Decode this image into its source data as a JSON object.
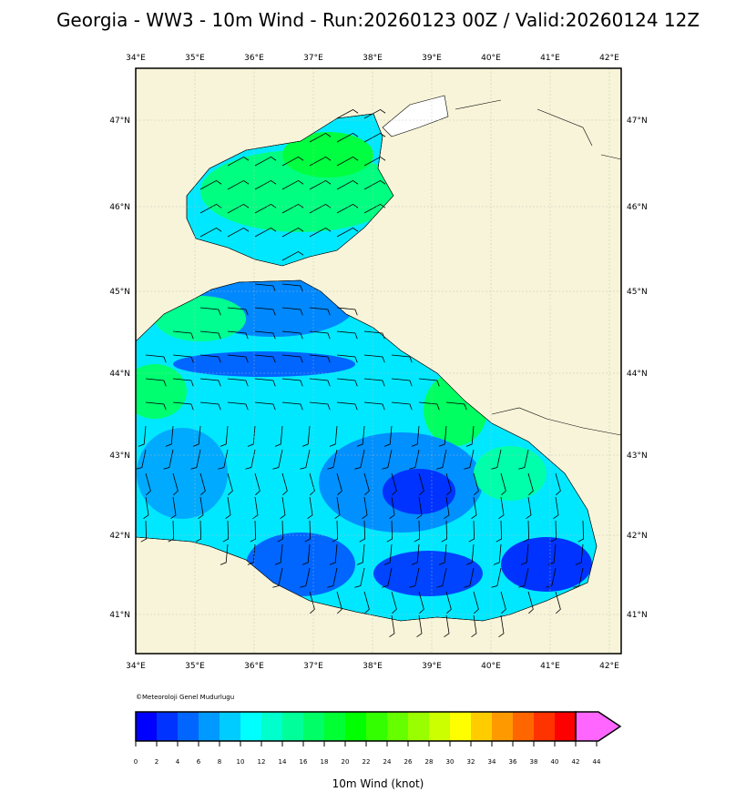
{
  "title": "Georgia - WW3 - 10m Wind - Run:20260123 00Z / Valid:20260124 12Z",
  "lon_labels": [
    "34°E",
    "35°E",
    "36°E",
    "37°E",
    "38°E",
    "39°E",
    "40°E",
    "41°E",
    "42°E"
  ],
  "lat_labels": [
    "47°N",
    "46°N",
    "45°N",
    "44°N",
    "43°N",
    "42°N",
    "41°N"
  ],
  "copyright": "©Meteoroloji Genel Mudurlugu",
  "colorbar": {
    "label": "10m Wind (knot)",
    "ticks": [
      0,
      2,
      4,
      6,
      8,
      10,
      12,
      14,
      16,
      18,
      20,
      22,
      24,
      26,
      28,
      30,
      32,
      34,
      36,
      38,
      40,
      42,
      44
    ],
    "colors": [
      "#0000ff",
      "#0033ff",
      "#0066ff",
      "#0099ff",
      "#00ccff",
      "#00ffff",
      "#00ffcc",
      "#00ff99",
      "#00ff66",
      "#00ff33",
      "#00ff00",
      "#33ff00",
      "#66ff00",
      "#99ff00",
      "#ccff00",
      "#ffff00",
      "#ffcc00",
      "#ff9900",
      "#ff6600",
      "#ff3300",
      "#ff0000"
    ],
    "extend_color": "#ff66ff"
  }
}
